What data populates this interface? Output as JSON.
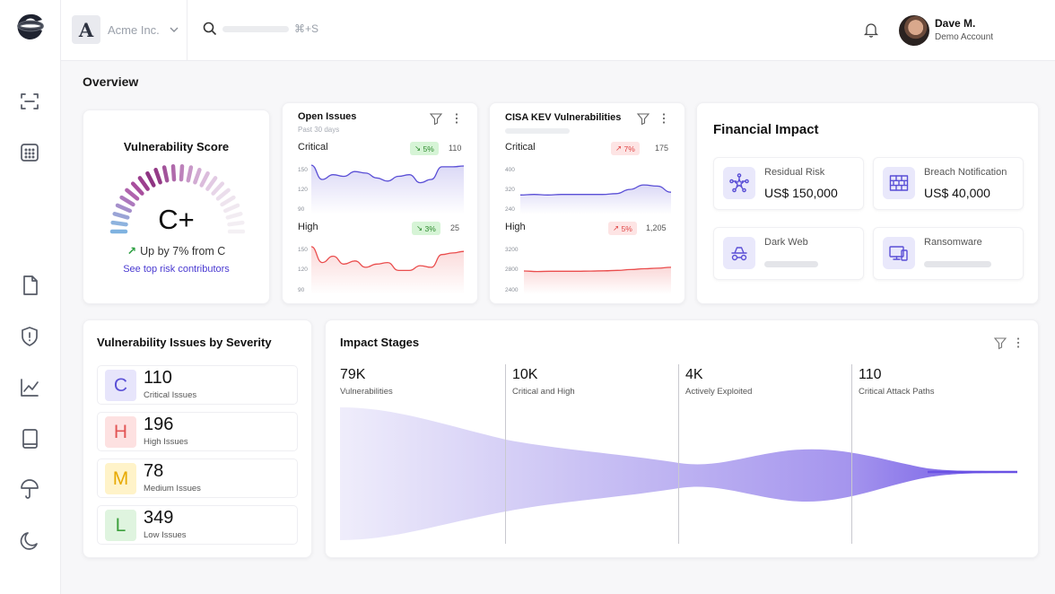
{
  "topbar": {
    "org_initial": "A",
    "org_name": "Acme Inc.",
    "search_shortcut": "⌘+S",
    "user_name": "Dave M.",
    "user_role": "Demo Account"
  },
  "overview": {
    "title": "Overview"
  },
  "score": {
    "title": "Vulnerability Score",
    "grade": "C+",
    "trend": "Up by 7% from C",
    "link": "See top risk contributors"
  },
  "open_issues": {
    "title": "Open Issues",
    "subtitle": "Past 30 days",
    "rows": [
      {
        "label": "Critical",
        "badge": "5%",
        "count": "110",
        "ticks": [
          "150",
          "120",
          "90"
        ],
        "values": [
          152,
          134,
          140,
          138,
          144,
          142,
          136,
          132,
          138,
          140,
          130,
          134,
          150,
          150,
          151
        ]
      },
      {
        "label": "High",
        "badge": "3%",
        "count": "25",
        "ticks": [
          "150",
          "120",
          "90"
        ],
        "values": [
          150,
          130,
          138,
          128,
          132,
          124,
          128,
          130,
          120,
          120,
          126,
          124,
          140,
          142,
          144
        ]
      }
    ]
  },
  "cisa": {
    "title": "CISA KEV Vulnerabilities",
    "rows": [
      {
        "label": "Critical",
        "badge": "7%",
        "count": "175",
        "ticks": [
          "400",
          "320",
          "240"
        ],
        "values": [
          290,
          292,
          290,
          292,
          292,
          292,
          292,
          295,
          310,
          326,
          322,
          300
        ]
      },
      {
        "label": "High",
        "badge": "5%",
        "count": "1,205",
        "ticks": [
          "3200",
          "2800",
          "2400"
        ],
        "values": [
          2720,
          2710,
          2715,
          2715,
          2715,
          2718,
          2722,
          2730,
          2745,
          2760,
          2770,
          2785
        ]
      }
    ]
  },
  "financial": {
    "title": "Financial Impact",
    "tiles": [
      {
        "icon": "network-star-icon",
        "label": "Residual Risk",
        "value": "US$ 150,000"
      },
      {
        "icon": "brick-wall-icon",
        "label": "Breach Notification",
        "value": "US$ 40,000"
      },
      {
        "icon": "incognito-icon",
        "label": "Dark Web",
        "value": ""
      },
      {
        "icon": "devices-icon",
        "label": "Ransomware",
        "value": ""
      }
    ]
  },
  "severity": {
    "title": "Vulnerability Issues by Severity",
    "items": [
      {
        "letter": "C",
        "count": "110",
        "label": "Critical Issues",
        "bg": "#e7e5fb",
        "fg": "#5a4fd6"
      },
      {
        "letter": "H",
        "count": "196",
        "label": "High Issues",
        "bg": "#fde1e1",
        "fg": "#e25555"
      },
      {
        "letter": "M",
        "count": "78",
        "label": "Medium Issues",
        "bg": "#fff3c9",
        "fg": "#e7a900"
      },
      {
        "letter": "L",
        "count": "349",
        "label": "Low Issues",
        "bg": "#dff4df",
        "fg": "#3ca03c"
      }
    ]
  },
  "stages": {
    "title": "Impact Stages",
    "items": [
      {
        "value": "79K",
        "label": "Vulnerabilities"
      },
      {
        "value": "10K",
        "label": "Critical and High"
      },
      {
        "value": "4K",
        "label": "Actively Exploited"
      },
      {
        "value": "110",
        "label": "Critical Attack Paths"
      }
    ]
  },
  "colors": {
    "accent": "#5a4fd6",
    "link": "#4a3ad1",
    "line_red": "#ea4d4d"
  }
}
